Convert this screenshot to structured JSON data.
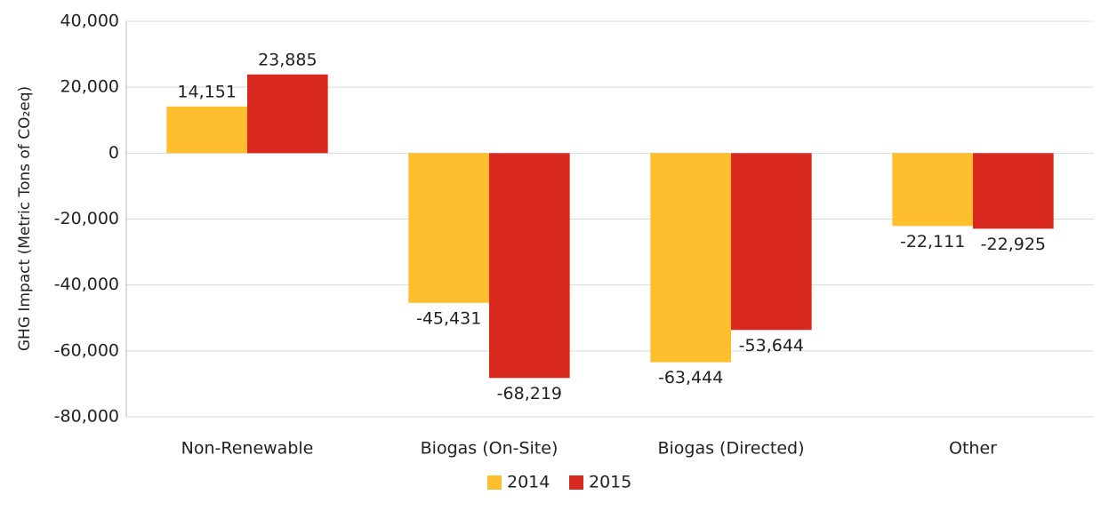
{
  "chart_data": {
    "type": "bar",
    "y_axis_label": "GHG Impact (Metric Tons of CO₂eq)",
    "categories": [
      "Non-Renewable",
      "Biogas (On-Site)",
      "Biogas (Directed)",
      "Other"
    ],
    "series": [
      {
        "name": "2014",
        "color": "#fdbf2d",
        "values": [
          14151,
          -45431,
          -63444,
          -22111
        ],
        "value_labels": [
          "14,151",
          "-45,431",
          "-63,444",
          "-22,111"
        ]
      },
      {
        "name": "2015",
        "color": "#d9281e",
        "values": [
          23885,
          -68219,
          -53644,
          -22925
        ],
        "value_labels": [
          "23,885",
          "-68,219",
          "-53,644",
          "-22,925"
        ]
      }
    ],
    "ylim": [
      -80000,
      40000
    ],
    "yticks": [
      {
        "value": -80000,
        "label": "-80,000"
      },
      {
        "value": -60000,
        "label": "-60,000"
      },
      {
        "value": -40000,
        "label": "-40,000"
      },
      {
        "value": -20000,
        "label": "-20,000"
      },
      0,
      {
        "value": 20000,
        "label": "20,000"
      },
      {
        "value": 40000,
        "label": "40,000"
      }
    ],
    "grid": true,
    "legend": "bottom"
  }
}
